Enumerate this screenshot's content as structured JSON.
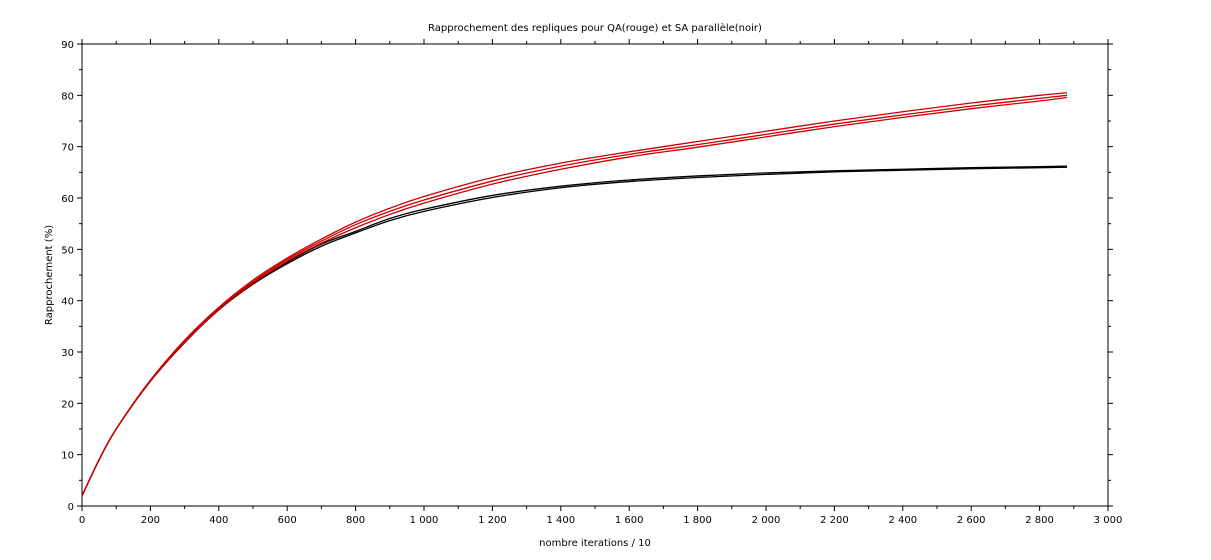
{
  "chart_data": {
    "type": "line",
    "title": "Rapprochement des repliques pour QA(rouge) et SA parallèle(noir)",
    "xlabel": "nombre iterations / 10",
    "ylabel": "Rapprochement (%)",
    "xlim": [
      0,
      3000
    ],
    "ylim": [
      0,
      90
    ],
    "xticks": [
      0,
      200,
      400,
      600,
      800,
      1000,
      1200,
      1400,
      1600,
      1800,
      2000,
      2200,
      2400,
      2600,
      2800,
      3000
    ],
    "xtick_labels": [
      "0",
      "200",
      "400",
      "600",
      "800",
      "1 000",
      "1 200",
      "1 400",
      "1 600",
      "1 800",
      "2 000",
      "2 200",
      "2 400",
      "2 600",
      "2 800",
      "3 000"
    ],
    "yticks": [
      0,
      10,
      20,
      30,
      40,
      50,
      60,
      70,
      80,
      90
    ],
    "ytick_labels": [
      "0",
      "10",
      "20",
      "30",
      "40",
      "50",
      "60",
      "70",
      "80",
      "90"
    ],
    "grid": false,
    "colors": {
      "qa": "#cc0000",
      "sa": "#000000",
      "axis": "#000000"
    },
    "series": [
      {
        "color": "#000000",
        "x": [
          0,
          50,
          100,
          200,
          300,
          400,
          500,
          600,
          700,
          800,
          900,
          1000,
          1200,
          1400,
          1600,
          1800,
          2000,
          2200,
          2400,
          2600,
          2800,
          2880
        ],
        "values": [
          2,
          9,
          15,
          24.5,
          32,
          38.5,
          43.5,
          47.5,
          51,
          53.5,
          56,
          57.8,
          60.5,
          62.3,
          63.5,
          64.3,
          64.9,
          65.3,
          65.6,
          65.9,
          66.1,
          66.2
        ]
      },
      {
        "color": "#000000",
        "x": [
          0,
          50,
          100,
          200,
          300,
          400,
          500,
          600,
          700,
          800,
          900,
          1000,
          1200,
          1400,
          1600,
          1800,
          2000,
          2200,
          2400,
          2600,
          2800,
          2880
        ],
        "values": [
          2,
          9,
          15,
          24.3,
          31.8,
          38.2,
          43.2,
          47.2,
          50.6,
          53.2,
          55.6,
          57.4,
          60.1,
          62,
          63.2,
          64,
          64.6,
          65.1,
          65.4,
          65.7,
          65.9,
          66
        ]
      },
      {
        "color": "#cc0000",
        "x": [
          0,
          50,
          100,
          200,
          300,
          400,
          500,
          600,
          700,
          800,
          900,
          1000,
          1200,
          1400,
          1600,
          1800,
          2000,
          2200,
          2400,
          2600,
          2800,
          2880
        ],
        "values": [
          2,
          9,
          15,
          24.5,
          32.3,
          38.7,
          44,
          48.3,
          52,
          55.3,
          58,
          60.3,
          64,
          66.8,
          69,
          71,
          73,
          75,
          76.8,
          78.5,
          80,
          80.5
        ]
      },
      {
        "color": "#cc0000",
        "x": [
          0,
          50,
          100,
          200,
          300,
          400,
          500,
          600,
          700,
          800,
          900,
          1000,
          1200,
          1400,
          1600,
          1800,
          2000,
          2200,
          2400,
          2600,
          2800,
          2880
        ],
        "values": [
          2,
          9,
          15,
          24.4,
          32.1,
          38.5,
          43.7,
          48,
          51.6,
          54.8,
          57.4,
          59.6,
          63.3,
          66.2,
          68.5,
          70.4,
          72.4,
          74.4,
          76.2,
          77.9,
          79.4,
          80
        ]
      },
      {
        "color": "#cc0000",
        "x": [
          0,
          50,
          100,
          200,
          300,
          400,
          500,
          600,
          700,
          800,
          900,
          1000,
          1200,
          1400,
          1600,
          1800,
          2000,
          2200,
          2400,
          2600,
          2800,
          2880
        ],
        "values": [
          2,
          9,
          15,
          24.3,
          31.9,
          38.3,
          43.4,
          47.7,
          51.2,
          54.2,
          56.8,
          59,
          62.7,
          65.6,
          68,
          69.9,
          71.9,
          73.9,
          75.7,
          77.4,
          78.9,
          79.6
        ]
      }
    ]
  }
}
